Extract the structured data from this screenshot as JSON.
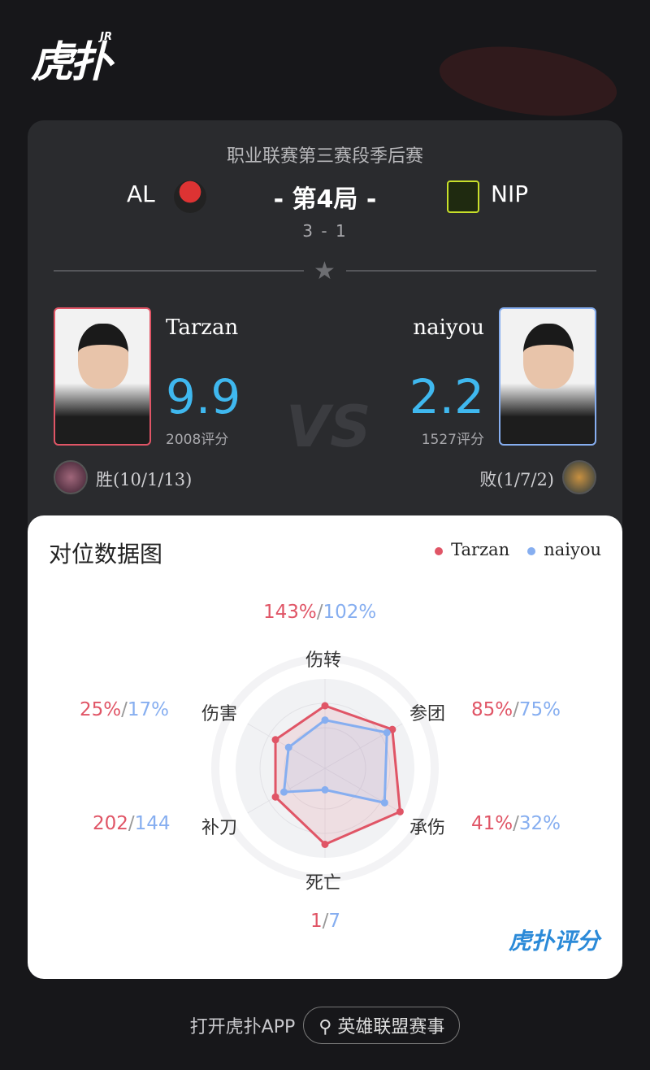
{
  "brand": {
    "logo": "虎扑",
    "logo_sup": "JR"
  },
  "match": {
    "league": "职业联赛第三赛段季后赛",
    "game": "- 第4局 -",
    "score": "3 - 1",
    "home_team": "AL",
    "away_team": "NIP"
  },
  "players": {
    "left": {
      "name": "Tarzan",
      "rating": "9.9",
      "score_label": "2008评分",
      "result": "胜(10/1/13)"
    },
    "right": {
      "name": "naiyou",
      "rating": "2.2",
      "score_label": "1527评分",
      "result": "败(1/7/2)"
    },
    "vs": "VS"
  },
  "chart_data": {
    "type": "radar",
    "title": "对位数据图",
    "axes": [
      "伤转",
      "参团",
      "承伤",
      "死亡",
      "补刀",
      "伤害"
    ],
    "series": [
      {
        "name": "Tarzan",
        "color": "#e05566",
        "labels": [
          "143%",
          "85%",
          "41%",
          "1",
          "202",
          "25%"
        ],
        "levels": [
          0.7,
          0.87,
          0.97,
          0.85,
          0.64,
          0.64
        ]
      },
      {
        "name": "naiyou",
        "color": "#86aef0",
        "labels": [
          "102%",
          "75%",
          "32%",
          "7",
          "144",
          "17%"
        ],
        "levels": [
          0.54,
          0.8,
          0.77,
          0.24,
          0.53,
          0.47
        ]
      }
    ]
  },
  "watermark": "虎扑评分",
  "footer": {
    "open_app": "打开虎扑APP",
    "search": "英雄联盟赛事"
  }
}
